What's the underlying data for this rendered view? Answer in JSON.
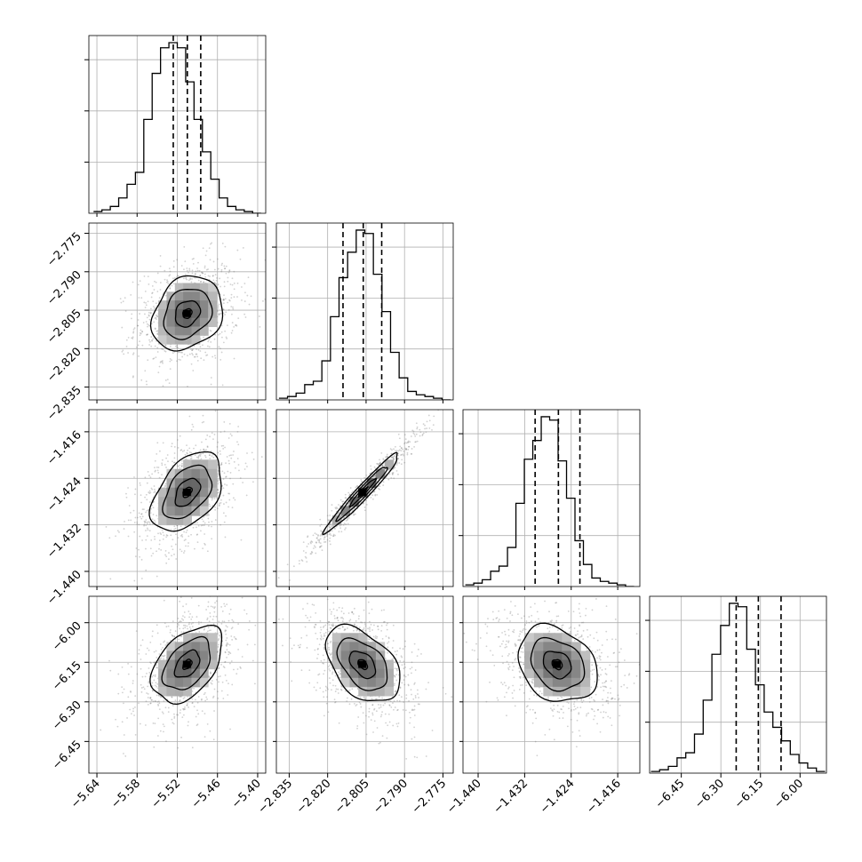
{
  "chart_data": {
    "type": "corner",
    "title": "",
    "parameters": 4,
    "grid": true,
    "colors": {
      "line": "#000000",
      "grid": "#b0b0b0",
      "points": "#7a7a7a"
    },
    "axes_ticks": [
      {
        "ticks": [
          -5.64,
          -5.58,
          -5.52,
          -5.46,
          -5.4
        ],
        "labels": [
          "−5.64",
          "−5.58",
          "−5.52",
          "−5.46",
          "−5.40"
        ],
        "range": [
          -5.652,
          -5.388
        ]
      },
      {
        "ticks": [
          -2.835,
          -2.82,
          -2.805,
          -2.79,
          -2.775
        ],
        "labels": [
          "−2.835",
          "−2.820",
          "−2.805",
          "−2.790",
          "−2.775"
        ],
        "range": [
          -2.84,
          -2.771
        ]
      },
      {
        "ticks": [
          -1.44,
          -1.432,
          -1.424,
          -1.416
        ],
        "labels": [
          "−1.440",
          "−1.432",
          "−1.424",
          "−1.416"
        ],
        "range": [
          -1.4426,
          -1.4122
        ]
      },
      {
        "ticks": [
          -6.45,
          -6.3,
          -6.15,
          -6.0
        ],
        "labels": [
          "−6.45",
          "−6.30",
          "−6.15",
          "−6.00"
        ],
        "range": [
          -6.57,
          -5.9
        ]
      }
    ],
    "quantiles": [
      [
        -5.526,
        -5.505,
        -5.485
      ],
      [
        -2.814,
        -2.8061,
        -2.7989
      ],
      [
        -1.4302,
        -1.4262,
        -1.4225
      ],
      [
        -6.242,
        -6.158,
        -6.072
      ]
    ],
    "histograms": [
      {
        "bins": 20,
        "range": [
          -5.645,
          -5.395
        ],
        "counts": [
          1,
          2,
          4,
          9,
          17,
          24,
          55,
          82,
          97,
          100,
          97,
          77,
          55,
          36,
          20,
          9,
          4,
          2,
          1,
          0
        ]
      },
      {
        "bins": 20,
        "range": [
          -2.839,
          -2.772
        ],
        "counts": [
          1,
          2,
          4,
          9,
          11,
          23,
          49,
          72,
          87,
          100,
          98,
          74,
          52,
          28,
          13,
          5,
          3,
          2,
          1,
          0
        ]
      },
      {
        "bins": 20,
        "range": [
          -1.4422,
          -1.4132
        ],
        "counts": [
          1,
          2,
          4,
          9,
          12,
          23,
          49,
          75,
          86,
          100,
          98,
          74,
          52,
          27,
          13,
          5,
          3,
          2,
          1,
          0
        ]
      },
      {
        "bins": 20,
        "range": [
          -6.565,
          -5.905
        ],
        "counts": [
          1,
          2,
          4,
          9,
          12,
          23,
          43,
          70,
          87,
          100,
          98,
          73,
          52,
          36,
          27,
          19,
          11,
          6,
          3,
          1
        ]
      }
    ],
    "pairs": [
      {
        "x_param": 0,
        "y_param": 1,
        "mean": [
          -5.505,
          -2.8063
        ],
        "sd": [
          0.031,
          0.0085
        ],
        "rho": 0.22
      },
      {
        "x_param": 0,
        "y_param": 2,
        "mean": [
          -5.505,
          -1.4264
        ],
        "sd": [
          0.031,
          0.004
        ],
        "rho": 0.45
      },
      {
        "x_param": 1,
        "y_param": 2,
        "mean": [
          -2.8063,
          -1.4264
        ],
        "sd": [
          0.0085,
          0.004
        ],
        "rho": 0.97
      },
      {
        "x_param": 0,
        "y_param": 3,
        "mean": [
          -5.505,
          -6.158
        ],
        "sd": [
          0.031,
          0.085
        ],
        "rho": 0.45
      },
      {
        "x_param": 1,
        "y_param": 3,
        "mean": [
          -2.8063,
          -6.158
        ],
        "sd": [
          0.0085,
          0.085
        ],
        "rho": -0.45
      },
      {
        "x_param": 2,
        "y_param": 3,
        "mean": [
          -1.4264,
          -6.158
        ],
        "sd": [
          0.004,
          0.085
        ],
        "rho": -0.25
      }
    ]
  }
}
